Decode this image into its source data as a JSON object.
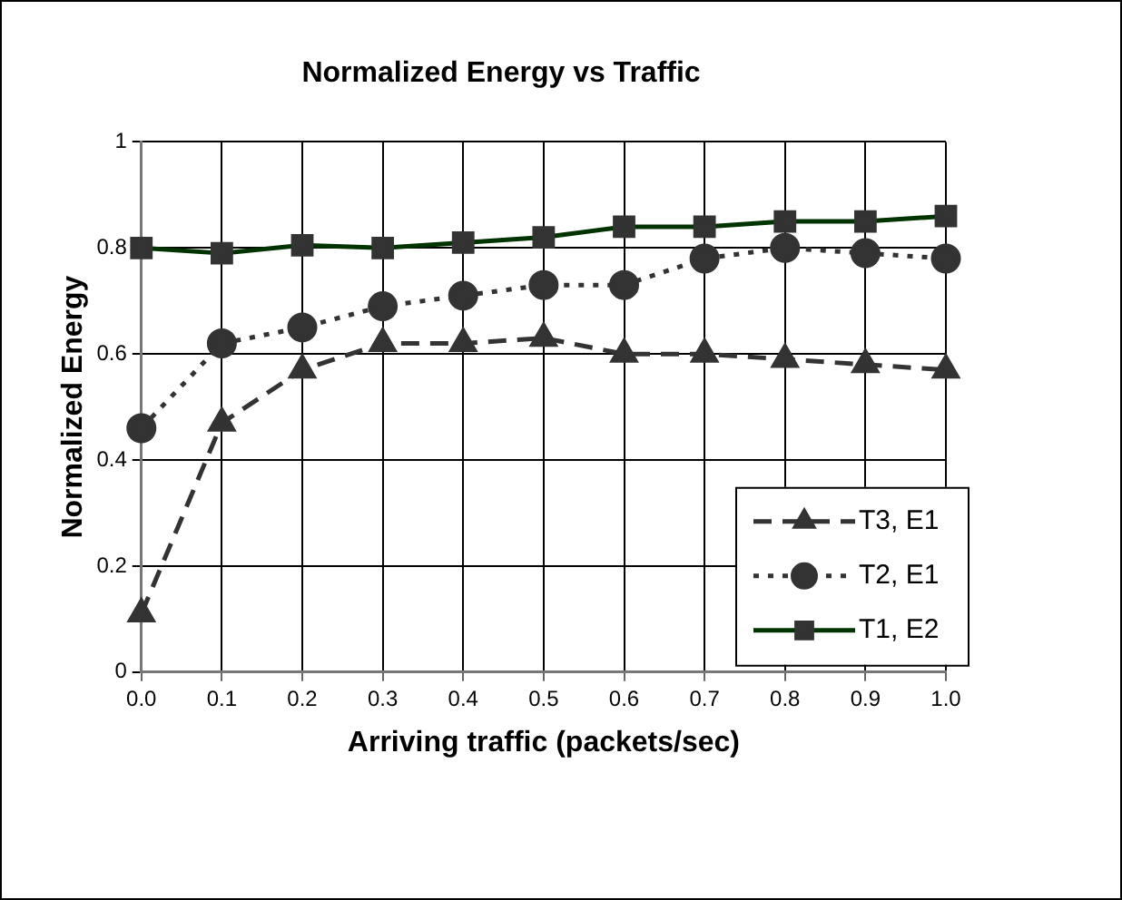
{
  "chart_data": {
    "type": "line",
    "title": "Normalized Energy vs Traffic",
    "xlabel": "Arriving traffic (packets/sec)",
    "ylabel": "Normalized Energy",
    "categories": [
      "0.0",
      "0.1",
      "0.2",
      "0.3",
      "0.4",
      "0.5",
      "0.6",
      "0.7",
      "0.8",
      "0.9",
      "1.0"
    ],
    "series": [
      {
        "name": "T3, E1",
        "color": "#333333",
        "marker": "triangle",
        "line_style": "dashed",
        "values": [
          0.11,
          0.47,
          0.57,
          0.62,
          0.62,
          0.63,
          0.6,
          0.6,
          0.59,
          0.58,
          0.57
        ]
      },
      {
        "name": "T2, E1",
        "color": "#333333",
        "marker": "circle",
        "line_style": "dotted",
        "values": [
          0.46,
          0.62,
          0.65,
          0.69,
          0.71,
          0.73,
          0.73,
          0.78,
          0.8,
          0.79,
          0.78
        ]
      },
      {
        "name": "T1, E2",
        "color": "#003300",
        "marker": "square",
        "line_style": "solid",
        "values": [
          0.8,
          0.79,
          0.805,
          0.8,
          0.81,
          0.82,
          0.84,
          0.84,
          0.85,
          0.85,
          0.86
        ]
      }
    ],
    "ylim": [
      0,
      1
    ],
    "yticks": [
      0,
      0.2,
      0.4,
      0.6,
      0.8,
      1
    ],
    "grid": true,
    "legend": "bottom right"
  }
}
